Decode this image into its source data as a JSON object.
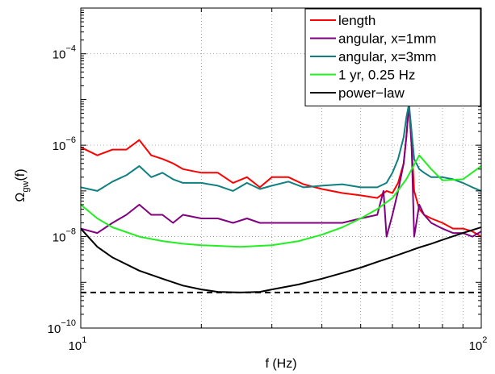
{
  "chart_data": {
    "type": "line",
    "xscale": "log",
    "yscale": "log",
    "xlim": [
      10,
      100
    ],
    "ylim": [
      1e-10,
      0.001
    ],
    "xlabel": "f (Hz)",
    "ylabel": "Ω",
    "ylabel_sub": "gw",
    "ylabel_suffix": "(f)",
    "grid": true,
    "legend_position": "top-right",
    "x_ticks": [
      {
        "value": 10,
        "base": "10",
        "exp": "1"
      },
      {
        "value": 100,
        "base": "10",
        "exp": "2"
      }
    ],
    "y_ticks": [
      {
        "value": 1e-10,
        "base": "10",
        "exp": "−10"
      },
      {
        "value": 1e-08,
        "base": "10",
        "exp": "−8"
      },
      {
        "value": 1e-06,
        "base": "10",
        "exp": "−6"
      },
      {
        "value": 0.0001,
        "base": "10",
        "exp": "−4"
      }
    ],
    "series": [
      {
        "name": "length",
        "color": "#ff0000",
        "x": [
          10,
          11,
          12,
          13,
          14,
          15,
          16,
          17,
          18,
          20,
          22,
          24,
          26,
          28,
          30,
          33,
          36,
          40,
          45,
          50,
          55,
          58,
          60,
          62,
          64,
          65,
          66,
          67,
          68,
          70,
          72,
          75,
          80,
          85,
          90,
          95,
          100
        ],
        "y": [
          9e-07,
          6e-07,
          8e-07,
          8e-07,
          1.3e-06,
          6e-07,
          5e-07,
          4e-07,
          3e-07,
          2.5e-07,
          2.5e-07,
          1.5e-07,
          2e-07,
          1.2e-07,
          2e-07,
          2e-07,
          1.4e-07,
          1.1e-07,
          9e-08,
          8e-08,
          7e-08,
          1e-07,
          9e-08,
          1.5e-07,
          4e-07,
          1.5e-06,
          8e-06,
          1e-06,
          1e-07,
          4e-08,
          3e-08,
          2.5e-08,
          2e-08,
          1.5e-08,
          1.5e-08,
          1.3e-08,
          1e-08
        ]
      },
      {
        "name": "angular, x=1mm",
        "color": "#800080",
        "x": [
          10,
          11,
          12,
          13,
          14,
          15,
          16,
          17,
          18,
          20,
          22,
          24,
          26,
          28,
          30,
          33,
          36,
          40,
          45,
          50,
          55,
          57,
          58,
          60,
          62,
          64,
          65,
          66,
          67,
          68,
          70,
          72,
          75,
          80,
          85,
          90,
          95,
          100
        ],
        "y": [
          1.5e-08,
          1.2e-08,
          2e-08,
          3e-08,
          5e-08,
          3e-08,
          3e-08,
          2e-08,
          3e-08,
          2.5e-08,
          2.5e-08,
          2e-08,
          2.5e-08,
          2e-08,
          2e-08,
          2e-08,
          2e-08,
          2e-08,
          2e-08,
          2.5e-08,
          3e-08,
          1e-07,
          1e-08,
          3e-08,
          1e-07,
          4e-07,
          1.5e-06,
          8e-06,
          1e-06,
          1e-08,
          5e-08,
          3e-08,
          2e-08,
          1.5e-08,
          1.2e-08,
          1.2e-08,
          1e-08,
          1.3e-08
        ]
      },
      {
        "name": "angular, x=3mm",
        "color": "#0f7f7f",
        "x": [
          10,
          11,
          12,
          13,
          14,
          15,
          16,
          17,
          18,
          20,
          22,
          24,
          26,
          28,
          30,
          33,
          36,
          40,
          45,
          50,
          55,
          58,
          60,
          62,
          64,
          65,
          66,
          67,
          68,
          70,
          72,
          75,
          80,
          85,
          90,
          95,
          100
        ],
        "y": [
          1.2e-07,
          1e-07,
          1.6e-07,
          2.2e-07,
          3.5e-07,
          2e-07,
          2.5e-07,
          1.8e-07,
          1.5e-07,
          1.5e-07,
          1.3e-07,
          1e-07,
          1.5e-07,
          1.1e-07,
          1.3e-07,
          1.6e-07,
          1.2e-07,
          1.3e-07,
          1.4e-07,
          1.2e-07,
          1.2e-07,
          1.5e-07,
          2.5e-07,
          5e-07,
          1.5e-06,
          4e-06,
          8e-06,
          2e-06,
          5e-07,
          3e-07,
          2.5e-07,
          2e-07,
          2e-07,
          1.8e-07,
          1.5e-07,
          1.2e-07,
          1e-07
        ]
      },
      {
        "name": "1 yr, 0.25 Hz",
        "color": "#22ee22",
        "x": [
          10,
          11,
          12,
          14,
          16,
          18,
          20,
          25,
          30,
          35,
          40,
          45,
          50,
          55,
          60,
          65,
          70,
          75,
          80,
          90,
          100
        ],
        "y": [
          5e-08,
          2.5e-08,
          1.6e-08,
          1e-08,
          8e-09,
          7e-09,
          6.5e-09,
          6e-09,
          6.5e-09,
          8e-09,
          1.1e-08,
          1.6e-08,
          2.5e-08,
          4e-08,
          7e-08,
          1.8e-07,
          6e-07,
          3e-07,
          1.7e-07,
          1.8e-07,
          3.5e-07
        ]
      },
      {
        "name": "power−law",
        "color": "#000000",
        "x": [
          10,
          11,
          12,
          14,
          16,
          18,
          20,
          22,
          25,
          28,
          30,
          35,
          40,
          45,
          50,
          55,
          60,
          65,
          70,
          75,
          80,
          90,
          100
        ],
        "y": [
          1.5e-08,
          6e-09,
          3.5e-09,
          1.8e-09,
          1.2e-09,
          8.5e-10,
          7e-10,
          6.2e-10,
          6e-10,
          6.2e-10,
          7e-10,
          9e-10,
          1.2e-09,
          1.6e-09,
          2.1e-09,
          2.8e-09,
          3.6e-09,
          4.6e-09,
          5.8e-09,
          7e-09,
          8.5e-09,
          1.2e-08,
          1.6e-08
        ]
      }
    ],
    "reference_lines": [
      {
        "y": 6e-10,
        "color": "#000000",
        "style": "dashed"
      }
    ]
  }
}
